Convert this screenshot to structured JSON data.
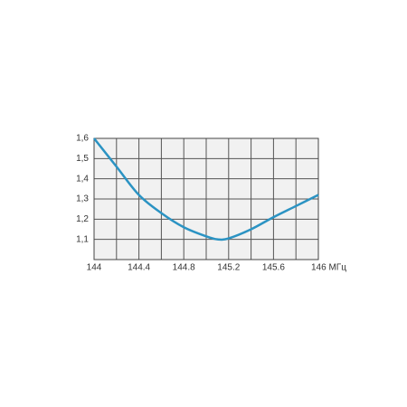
{
  "chart_data": {
    "type": "line",
    "x": [
      144,
      144.2,
      144.4,
      144.6,
      144.8,
      145.0,
      145.1,
      145.2,
      145.4,
      145.6,
      145.8,
      146
    ],
    "series": [
      {
        "color": "#2b93c3",
        "values": [
          1.6,
          1.46,
          1.32,
          1.23,
          1.16,
          1.115,
          1.1,
          1.105,
          1.15,
          1.21,
          1.265,
          1.32
        ]
      }
    ],
    "xlim": [
      144,
      146
    ],
    "xticks": [
      144,
      144.4,
      144.8,
      145.2,
      145.6,
      {
        "value": 146,
        "label": "146 МГц"
      }
    ],
    "ylim": [
      1.0,
      1.6
    ],
    "yticks": [
      {
        "value": 1.1,
        "label": "1,1"
      },
      {
        "value": 1.2,
        "label": "1,2"
      },
      {
        "value": 1.3,
        "label": "1,3"
      },
      {
        "value": 1.4,
        "label": "1,4"
      },
      {
        "value": 1.5,
        "label": "1,5"
      },
      {
        "value": 1.6,
        "label": "1,6"
      }
    ],
    "grid": true
  }
}
